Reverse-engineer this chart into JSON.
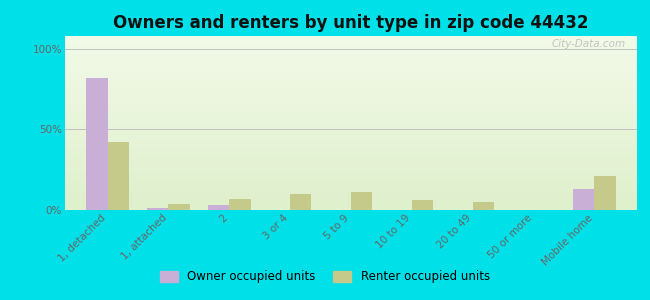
{
  "title": "Owners and renters by unit type in zip code 44432",
  "categories": [
    "1, detached",
    "1, attached",
    "2",
    "3 or 4",
    "5 to 9",
    "10 to 19",
    "20 to 49",
    "50 or more",
    "Mobile home"
  ],
  "owner_values": [
    82,
    1,
    3,
    0,
    0,
    0,
    0,
    0,
    13
  ],
  "renter_values": [
    42,
    4,
    7,
    10,
    11,
    6,
    5,
    0,
    21
  ],
  "owner_color": "#c9aed6",
  "renter_color": "#c5c98a",
  "bg_top": "#f2fae8",
  "bg_bottom": "#dff0cc",
  "outer_bg": "#00e0e8",
  "yticks": [
    0,
    50,
    100
  ],
  "ylabels": [
    "0%",
    "50%",
    "100%"
  ],
  "ylim": [
    0,
    108
  ],
  "bar_width": 0.35,
  "title_fontsize": 12,
  "legend_fontsize": 8.5,
  "tick_fontsize": 7.5,
  "watermark": "City-Data.com"
}
